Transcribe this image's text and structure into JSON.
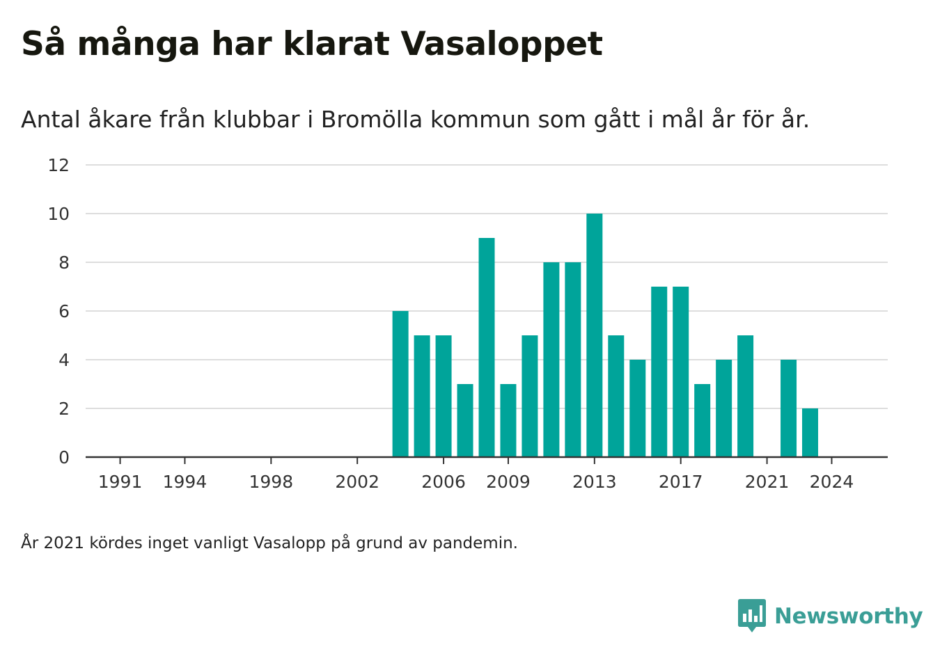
{
  "title": "Så många har klarat Vasaloppet",
  "subtitle": "Antal åkare från klubbar i Bromölla kommun som gått i mål år för år.",
  "note": "År 2021 kördes inget vanligt Vasalopp på grund av pandemin.",
  "logo": {
    "text": "Newsworthy",
    "color": "#3a9e96",
    "icon": "chart-speech-bubble-icon"
  },
  "colors": {
    "bar": "#00a49a",
    "grid": "#dddddd",
    "axis": "#333333"
  },
  "chart_data": {
    "type": "bar",
    "title": "Så många har klarat Vasaloppet",
    "subtitle": "Antal åkare från klubbar i Bromölla kommun som gått i mål år för år.",
    "xlabel": "",
    "ylabel": "",
    "ylim": [
      0,
      12
    ],
    "yticks": [
      "0",
      "2",
      "4",
      "6",
      "8",
      "10",
      "12"
    ],
    "xlim": [
      1989.4,
      2026.6
    ],
    "xticks": [
      "1991",
      "1994",
      "1998",
      "2002",
      "2006",
      "2009",
      "2013",
      "2017",
      "2021",
      "2024"
    ],
    "grid": true,
    "legend": "none",
    "categories": [
      1990,
      1991,
      1992,
      1993,
      1994,
      1995,
      1996,
      1997,
      1998,
      1999,
      2000,
      2001,
      2002,
      2003,
      2004,
      2005,
      2006,
      2007,
      2008,
      2009,
      2010,
      2011,
      2012,
      2013,
      2014,
      2015,
      2016,
      2017,
      2018,
      2019,
      2020,
      2021,
      2022,
      2023,
      2024
    ],
    "values": [
      0,
      0,
      0,
      0,
      0,
      0,
      0,
      0,
      0,
      0,
      0,
      0,
      0,
      0,
      6,
      5,
      5,
      3,
      9,
      3,
      5,
      8,
      8,
      10,
      5,
      4,
      7,
      7,
      3,
      4,
      5,
      0,
      4,
      2,
      0
    ]
  }
}
